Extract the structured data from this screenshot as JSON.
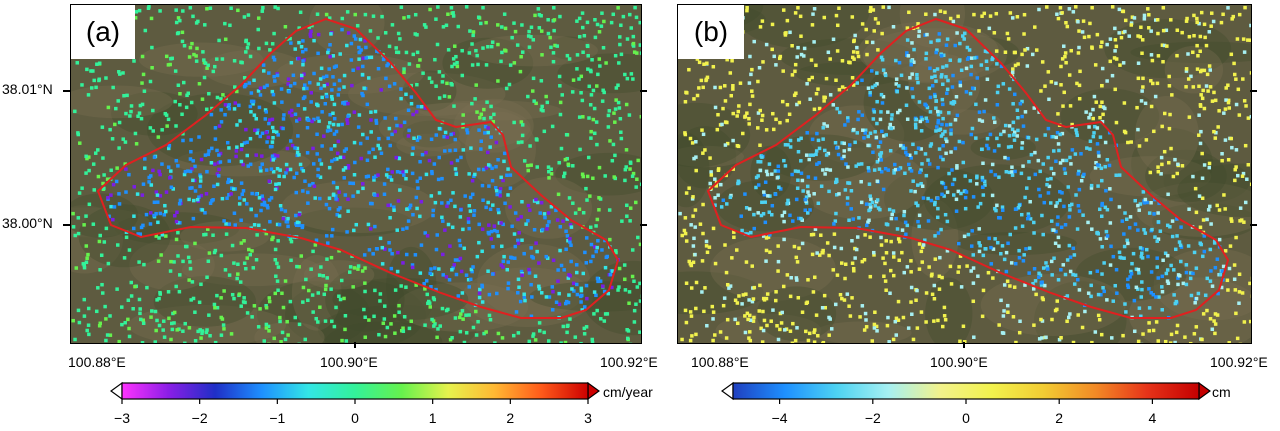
{
  "panels": [
    {
      "label": "(a)",
      "scheme": "velocity",
      "lat_ticks": [
        "38.01°N",
        "38.00°N"
      ],
      "lon_ticks": [
        "100.88°E",
        "100.90°E",
        "100.92°E"
      ],
      "colorbar": {
        "ticks": [
          "−3",
          "−2",
          "−1",
          "0",
          "1",
          "2",
          "3"
        ],
        "unit": "cm/year",
        "min": -3,
        "max": 3,
        "colors": [
          "#ff33ff",
          "#8a1ee6",
          "#1f2fc7",
          "#1e90ff",
          "#33e6e6",
          "#33f29a",
          "#66f24d",
          "#e6f24d",
          "#ffb833",
          "#ff5a1a",
          "#cc0000"
        ]
      }
    },
    {
      "label": "(b)",
      "scheme": "displacement",
      "lat_ticks": [],
      "lon_ticks": [
        "100.88°E",
        "100.90°E",
        "100.92°E"
      ],
      "colorbar": {
        "ticks": [
          "−4",
          "−2",
          "0",
          "2",
          "4"
        ],
        "unit": "cm",
        "min": -5,
        "max": 5,
        "colors": [
          "#1f3fbf",
          "#1e90ff",
          "#4dd2f2",
          "#a6f0f2",
          "#f2f28c",
          "#f2f24d",
          "#f2cc33",
          "#f28a26",
          "#e63319",
          "#c40000"
        ]
      }
    }
  ],
  "boundary_color": "#e02020"
}
